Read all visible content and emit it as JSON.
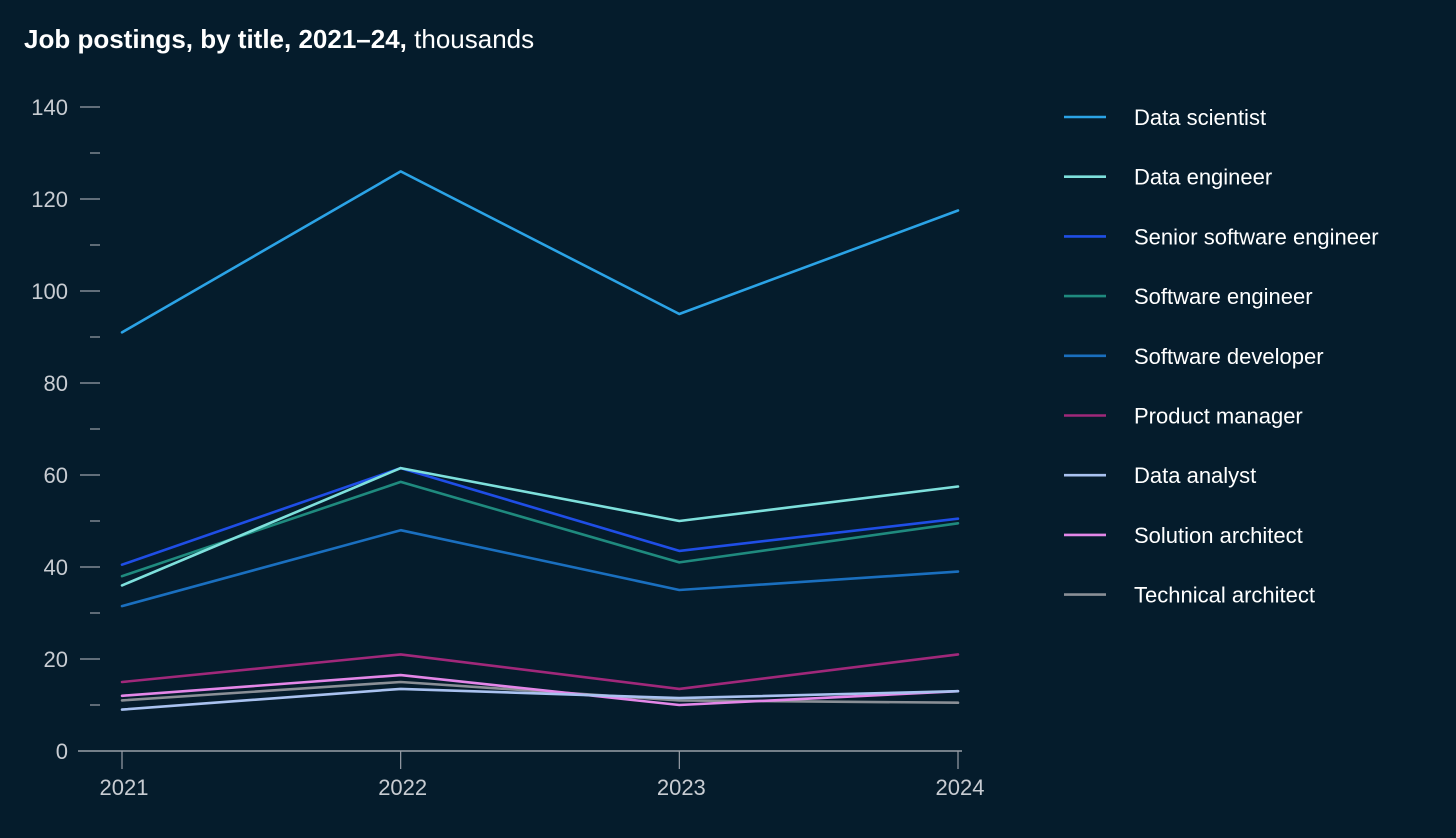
{
  "title": {
    "bold": "Job postings, by title, 2021–24,",
    "light": "thousands"
  },
  "chart_data": {
    "type": "line",
    "title": "Job postings, by title, 2021–24, thousands",
    "x": [
      "2021",
      "2022",
      "2023",
      "2024"
    ],
    "ylim": [
      0,
      140
    ],
    "yticks": [
      0,
      20,
      40,
      60,
      80,
      100,
      120,
      140
    ],
    "minor_ytick_step": 10,
    "grid": false,
    "legend_position": "right",
    "series": [
      {
        "name": "Data scientist",
        "color": "#2ba3e6",
        "values": [
          91,
          126,
          95,
          117.5
        ]
      },
      {
        "name": "Data engineer",
        "color": "#7ee0dc",
        "values": [
          36,
          61.5,
          50,
          57.5
        ]
      },
      {
        "name": "Senior software engineer",
        "color": "#1f4ee6",
        "values": [
          40.5,
          61.5,
          43.5,
          50.5
        ]
      },
      {
        "name": "Software engineer",
        "color": "#1f8a7e",
        "values": [
          38,
          58.5,
          41,
          49.5
        ]
      },
      {
        "name": "Software developer",
        "color": "#1a6fbf",
        "values": [
          31.5,
          48,
          35,
          39
        ]
      },
      {
        "name": "Product manager",
        "color": "#a0287a",
        "values": [
          15,
          21,
          13.5,
          21
        ]
      },
      {
        "name": "Data analyst",
        "color": "#a9c2f0",
        "values": [
          9,
          13.5,
          11.5,
          13
        ]
      },
      {
        "name": "Solution architect",
        "color": "#e487e8",
        "values": [
          12,
          16.5,
          10,
          13
        ]
      },
      {
        "name": "Technical architect",
        "color": "#8a8f96",
        "values": [
          11,
          15,
          11,
          10.5
        ]
      }
    ]
  }
}
